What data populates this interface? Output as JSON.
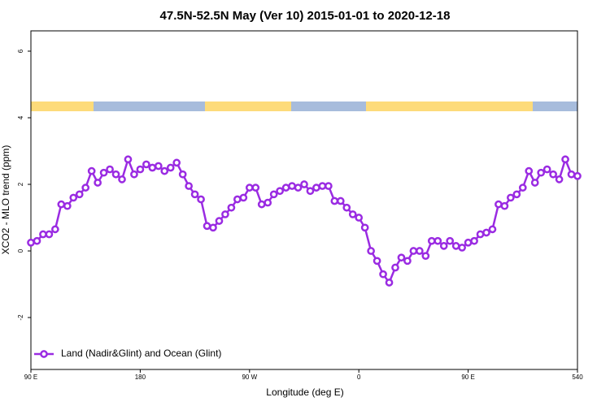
{
  "chart_data": {
    "type": "line",
    "title": "47.5N-52.5N May (Ver 10)   2015-01-01 to 2020-12-18",
    "x_label": "Longitude (deg E)",
    "y_label": "XCO2 - MLO trend (ppm)",
    "xlim": [
      90,
      540
    ],
    "ylim": [
      -3.56,
      6.61
    ],
    "xticks": [
      {
        "value": 90,
        "label": "90 E"
      },
      180,
      {
        "value": 270,
        "label": "90 W"
      },
      {
        "value": 360,
        "label": "0"
      },
      {
        "value": 450,
        "label": "90 E"
      },
      540
    ],
    "yticks": [
      -2,
      0,
      2,
      4,
      6
    ],
    "legend": "bottom-left",
    "x": [
      90,
      95,
      100,
      105,
      110,
      115,
      120,
      125,
      130,
      135,
      140,
      145,
      150,
      155,
      160,
      165,
      170,
      175,
      180,
      185,
      190,
      195,
      200,
      205,
      210,
      215,
      220,
      225,
      230,
      235,
      240,
      245,
      250,
      255,
      260,
      265,
      270,
      275,
      280,
      285,
      290,
      295,
      300,
      305,
      310,
      315,
      320,
      325,
      330,
      335,
      340,
      345,
      350,
      355,
      360,
      365,
      370,
      375,
      380,
      385,
      390,
      395,
      400,
      405,
      410,
      415,
      420,
      425,
      430,
      435,
      440,
      445,
      450,
      455,
      460,
      465,
      470,
      475,
      480,
      485,
      490,
      495,
      500,
      505,
      510,
      515,
      520,
      525,
      530,
      535,
      540
    ],
    "series": [
      {
        "name": "Land (Nadir&Glint) and Ocean (Glint)",
        "color": "#9a2be2",
        "values": [
          0.25,
          0.3,
          0.5,
          0.5,
          0.65,
          1.4,
          1.35,
          1.6,
          1.7,
          1.9,
          2.4,
          2.05,
          2.35,
          2.45,
          2.3,
          2.15,
          2.75,
          2.3,
          2.45,
          2.6,
          2.5,
          2.55,
          2.4,
          2.5,
          2.65,
          2.3,
          1.95,
          1.7,
          1.55,
          0.75,
          0.7,
          0.9,
          1.1,
          1.3,
          1.55,
          1.6,
          1.9,
          1.9,
          1.4,
          1.45,
          1.7,
          1.8,
          1.9,
          1.95,
          1.9,
          2.0,
          1.8,
          1.9,
          1.95,
          1.95,
          1.5,
          1.5,
          1.3,
          1.1,
          1.0,
          0.7,
          0.0,
          -0.3,
          -0.7,
          -0.95,
          -0.5,
          -0.2,
          -0.3,
          0.0,
          0.0,
          -0.15,
          0.3,
          0.3,
          0.15,
          0.3,
          0.15,
          0.1,
          0.25,
          0.3,
          0.5,
          0.55,
          0.65,
          1.4,
          1.35,
          1.6,
          1.7,
          1.9,
          2.4,
          2.05,
          2.35,
          2.45,
          2.3,
          2.15,
          2.75,
          2.3,
          2.25
        ]
      }
    ]
  }
}
